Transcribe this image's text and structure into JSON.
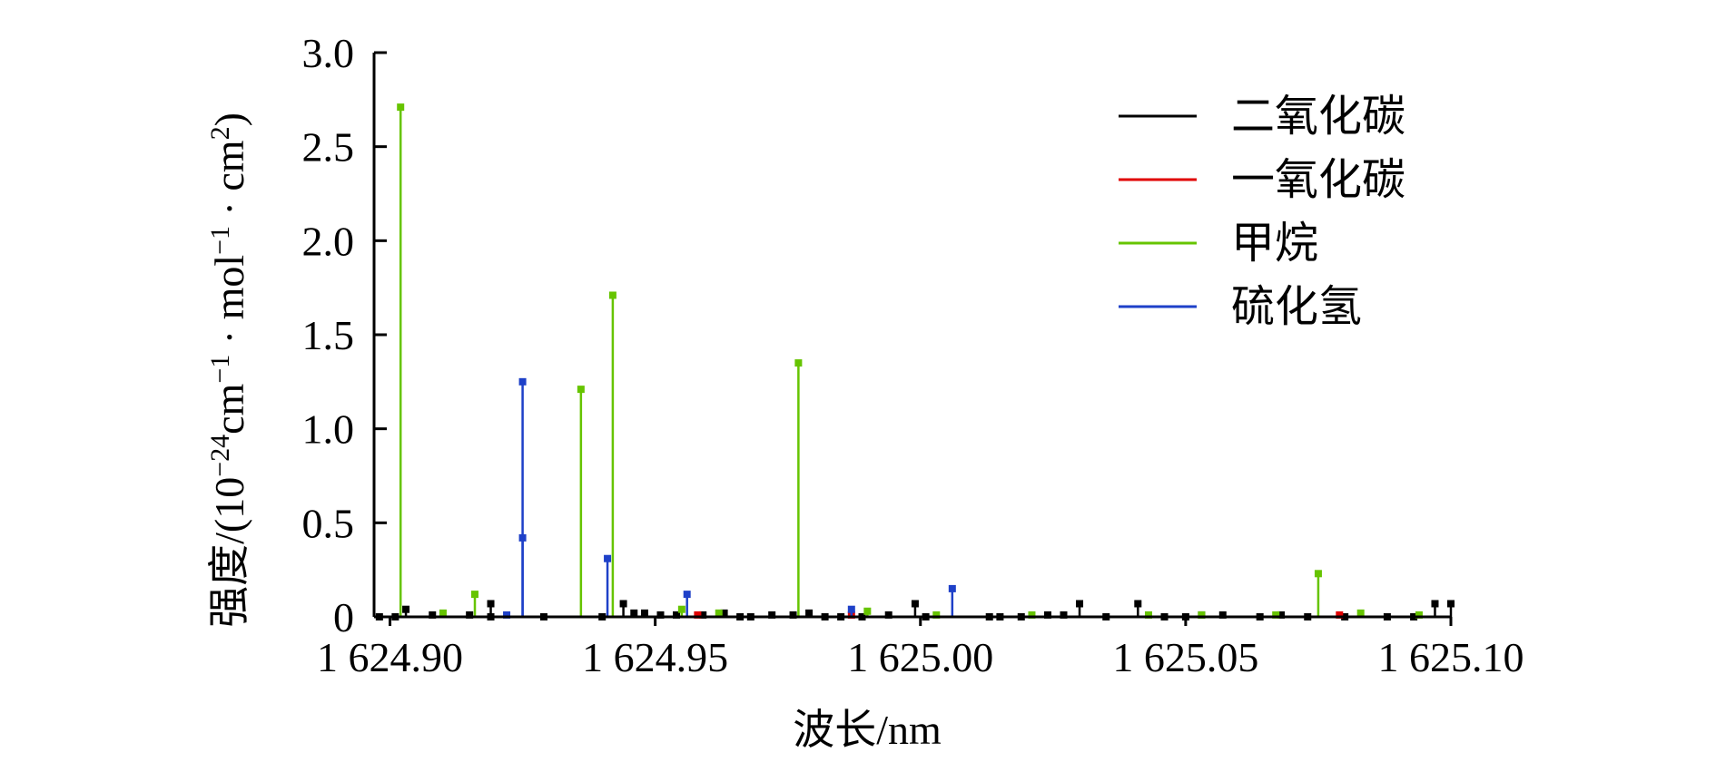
{
  "chart_data": {
    "type": "line",
    "title": "",
    "xlabel": "波长/nm",
    "ylabel": "强度/(10",
    "ylabel_sup1": "−24",
    "ylabel_mid1": "cm",
    "ylabel_sup2": "−1",
    "ylabel_mid2": " · mol",
    "ylabel_sup3": "−1",
    "ylabel_mid3": " · cm",
    "ylabel_sup4": "2",
    "ylabel_end": ")",
    "xlim": [
      1624.897,
      1625.1
    ],
    "ylim": [
      0,
      3.0
    ],
    "x_ticks": [
      1624.9,
      1624.95,
      1625.0,
      1625.05,
      1625.1
    ],
    "x_tick_labels": [
      "1 624.90",
      "1 624.95",
      "1 625.00",
      "1 625.05",
      "1 625.10"
    ],
    "y_ticks": [
      0,
      0.5,
      1.0,
      1.5,
      2.0,
      2.5,
      3.0
    ],
    "y_tick_labels": [
      "0",
      "0.5",
      "1.0",
      "1.5",
      "2.0",
      "2.5",
      "3.0"
    ],
    "grid": false,
    "legend_position": "top-right",
    "series": [
      {
        "name": "二氧化碳",
        "color": "#000000",
        "x": [
          1624.898,
          1624.901,
          1624.903,
          1624.908,
          1624.915,
          1624.919,
          1624.919,
          1624.929,
          1624.94,
          1624.944,
          1624.946,
          1624.948,
          1624.951,
          1624.954,
          1624.959,
          1624.963,
          1624.966,
          1624.968,
          1624.972,
          1624.976,
          1624.979,
          1624.982,
          1624.985,
          1624.989,
          1624.994,
          1624.999,
          1625.001,
          1625.013,
          1625.015,
          1625.019,
          1625.024,
          1625.027,
          1625.03,
          1625.035,
          1625.041,
          1625.046,
          1625.05,
          1625.053,
          1625.057,
          1625.064,
          1625.068,
          1625.073,
          1625.08,
          1625.088,
          1625.093,
          1625.097,
          1625.1
        ],
        "values": [
          0.0,
          0.0,
          0.04,
          0.01,
          0.01,
          0.07,
          0.0,
          0.0,
          0.0,
          0.07,
          0.02,
          0.02,
          0.01,
          0.01,
          0.01,
          0.02,
          0.0,
          0.0,
          0.01,
          0.01,
          0.02,
          0.0,
          0.0,
          0.0,
          0.01,
          0.07,
          0.0,
          0.0,
          0.0,
          0.0,
          0.01,
          0.01,
          0.07,
          0.0,
          0.07,
          0.0,
          0.0,
          0.01,
          0.01,
          0.0,
          0.01,
          0.0,
          0.0,
          0.0,
          0.0,
          0.07,
          0.07
        ]
      },
      {
        "name": "一氧化碳",
        "color": "#e00000",
        "x": [
          1624.958,
          1624.987,
          1625.079
        ],
        "values": [
          0.01,
          0.01,
          0.01
        ]
      },
      {
        "name": "甲烷",
        "color": "#66c400",
        "x": [
          1624.902,
          1624.91,
          1624.916,
          1624.936,
          1624.942,
          1624.955,
          1624.962,
          1624.977,
          1624.99,
          1625.003,
          1625.021,
          1625.043,
          1625.053,
          1625.067,
          1625.075,
          1625.083,
          1625.094
        ],
        "values": [
          2.71,
          0.02,
          0.12,
          1.21,
          1.71,
          0.04,
          0.02,
          1.35,
          0.03,
          0.01,
          0.01,
          0.01,
          0.01,
          0.01,
          0.23,
          0.02,
          0.01
        ]
      },
      {
        "name": "硫化氢",
        "color": "#1e40c8",
        "x": [
          1624.922,
          1624.925,
          1624.925,
          1624.941,
          1624.956,
          1624.987,
          1625.006
        ],
        "values": [
          0.01,
          1.25,
          0.42,
          0.31,
          0.12,
          0.04,
          0.15
        ]
      }
    ]
  }
}
